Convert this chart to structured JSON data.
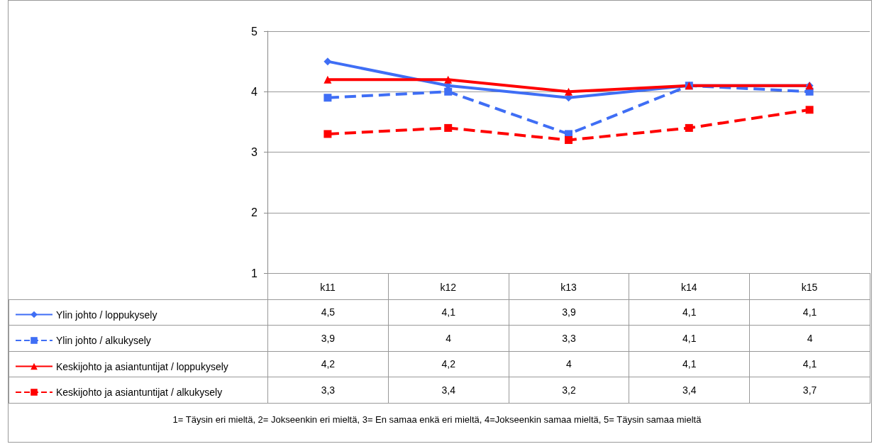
{
  "chart_data": {
    "type": "line",
    "categories": [
      "k11",
      "k12",
      "k13",
      "k14",
      "k15"
    ],
    "series": [
      {
        "name": "Ylin johto / loppukysely",
        "color": "#3f6ef5",
        "values": [
          4.5,
          4.1,
          3.9,
          4.1,
          4.1
        ],
        "value_labels": [
          "4,5",
          "4,1",
          "3,9",
          "4,1",
          "4,1"
        ],
        "marker": "diamond",
        "line_style": "solid"
      },
      {
        "name": "Ylin johto / alkukysely",
        "color": "#3f6ef5",
        "values": [
          3.9,
          4,
          3.3,
          4.1,
          4
        ],
        "value_labels": [
          "3,9",
          "4",
          "3,3",
          "4,1",
          "4"
        ],
        "marker": "square",
        "line_style": "dashed"
      },
      {
        "name": "Keskijohto ja asiantuntijat / loppukysely",
        "color": "#ff0000",
        "values": [
          4.2,
          4.2,
          4,
          4.1,
          4.1
        ],
        "value_labels": [
          "4,2",
          "4,2",
          "4",
          "4,1",
          "4,1"
        ],
        "marker": "triangle",
        "line_style": "solid"
      },
      {
        "name": "Keskijohto ja asiantuntijat / alkukysely",
        "color": "#ff0000",
        "values": [
          3.3,
          3.4,
          3.2,
          3.4,
          3.7
        ],
        "value_labels": [
          "3,3",
          "3,4",
          "3,2",
          "3,4",
          "3,7"
        ],
        "marker": "square",
        "line_style": "dashed"
      }
    ],
    "ylim": [
      1,
      5
    ],
    "yticks": [
      1,
      2,
      3,
      4,
      5
    ],
    "grid": "y",
    "legend": "bottom left",
    "annotations": [
      "1= Täysin eri mieltä, 2= Jokseenkin eri mieltä, 3= En samaa enkä eri mieltä, 4=Jokseenkin samaa mieltä, 5= Täysin samaa mieltä"
    ]
  }
}
